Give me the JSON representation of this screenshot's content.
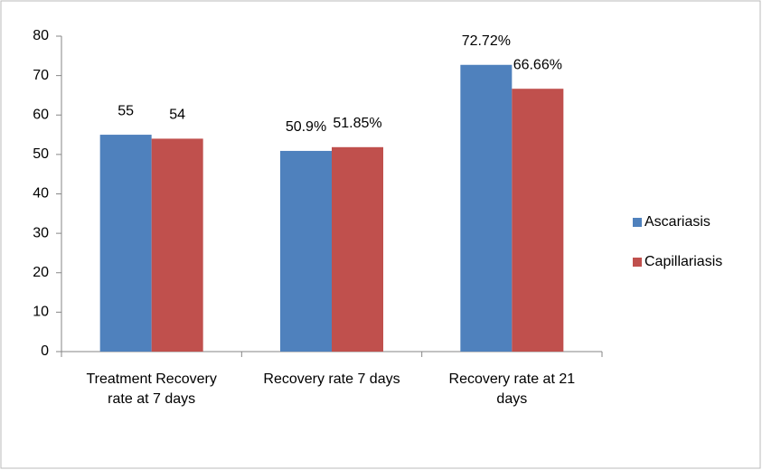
{
  "chart_data": {
    "type": "bar",
    "categories": [
      "Treatment Recovery rate at 7 days",
      "Recovery rate 7 days",
      "Recovery rate at 21 days"
    ],
    "series": [
      {
        "name": "Ascariasis",
        "color": "#4f81bd",
        "values": [
          55,
          50.9,
          72.72
        ],
        "value_labels": [
          "55",
          "50.9%",
          "72.72%"
        ]
      },
      {
        "name": "Capillariasis",
        "color": "#c0504d",
        "values": [
          54,
          51.85,
          66.66
        ],
        "value_labels": [
          "54",
          "51.85%",
          "66.66%"
        ]
      }
    ],
    "ylim": [
      0,
      80
    ],
    "yticks": [
      0,
      10,
      20,
      30,
      40,
      50,
      60,
      70,
      80
    ],
    "grid": false,
    "legend": "right"
  }
}
